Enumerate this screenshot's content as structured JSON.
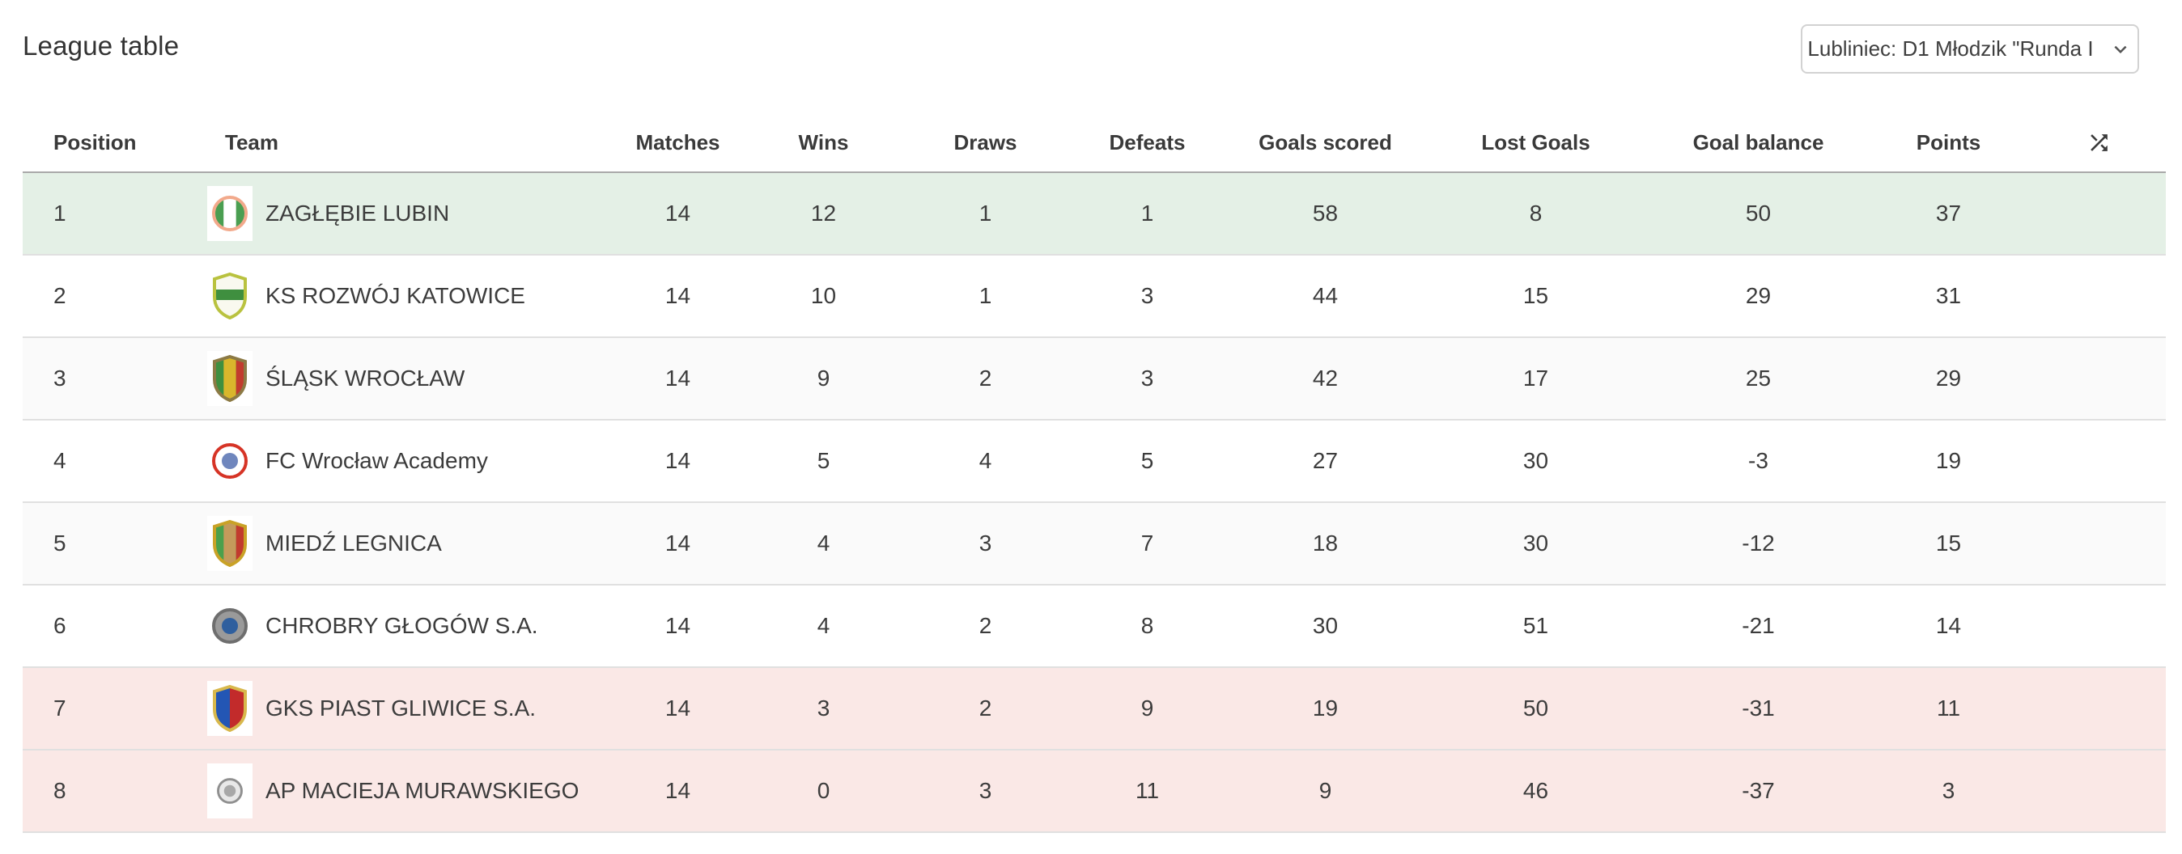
{
  "page": {
    "title": "League table"
  },
  "filter": {
    "value": "Lubliniec: D1 Młodzik \"Runda I",
    "chevron_icon": "chevron-down"
  },
  "colors": {
    "promotion_bg": "#e4f0e6",
    "relegation_bg": "#fae8e6",
    "stripe_bg": "#fafafa",
    "row_bg": "#ffffff",
    "divider": "#e0e0e0",
    "header_rule": "#a9a9a9",
    "icon": "#3a3a3a"
  },
  "table": {
    "columns": [
      "Position",
      "Team",
      "Matches",
      "Wins",
      "Draws",
      "Defeats",
      "Goals scored",
      "Lost Goals",
      "Goal balance",
      "Points"
    ],
    "sort_icon": "shuffle-icon",
    "rows": [
      {
        "position": "1",
        "team": "ZAGŁĘBIE LUBIN",
        "matches": "14",
        "wins": "12",
        "draws": "1",
        "defeats": "1",
        "goals_scored": "58",
        "lost_goals": "8",
        "goal_balance": "50",
        "points": "37",
        "zone": "promotion",
        "crest": {
          "shape": "circle",
          "border": "#f2a98b",
          "bg": "#ffffff",
          "stripes": [
            "#4a9e51",
            "#ffffff",
            "#4a9e51"
          ],
          "dir": "v"
        }
      },
      {
        "position": "2",
        "team": "KS ROZWÓJ KATOWICE",
        "matches": "14",
        "wins": "10",
        "draws": "1",
        "defeats": "3",
        "goals_scored": "44",
        "lost_goals": "15",
        "goal_balance": "29",
        "points": "31",
        "zone": "none",
        "crest": {
          "shape": "shield",
          "border": "#b9c23f",
          "bg": "#f9f9ef",
          "stripes": [
            "#3f8f3f"
          ],
          "dir": "h"
        }
      },
      {
        "position": "3",
        "team": "ŚLĄSK WROCŁAW",
        "matches": "14",
        "wins": "9",
        "draws": "2",
        "defeats": "3",
        "goals_scored": "42",
        "lost_goals": "17",
        "goal_balance": "25",
        "points": "29",
        "zone": "none",
        "crest": {
          "shape": "shield",
          "border": "#8c7a45",
          "bg": "#3f8f3f",
          "stripes": [
            "#3f8f3f",
            "#d9b62c",
            "#c23b2e"
          ],
          "dir": "v"
        }
      },
      {
        "position": "4",
        "team": "FC Wrocław Academy",
        "matches": "14",
        "wins": "5",
        "draws": "4",
        "defeats": "5",
        "goals_scored": "27",
        "lost_goals": "30",
        "goal_balance": "-3",
        "points": "19",
        "zone": "none",
        "crest": {
          "shape": "circle",
          "border": "#d63426",
          "bg": "#ffffff",
          "stripes": [
            "#6f86bd"
          ],
          "dir": "c"
        }
      },
      {
        "position": "5",
        "team": "MIEDŹ LEGNICA",
        "matches": "14",
        "wins": "4",
        "draws": "3",
        "defeats": "7",
        "goals_scored": "18",
        "lost_goals": "30",
        "goal_balance": "-12",
        "points": "15",
        "zone": "none",
        "crest": {
          "shape": "shield",
          "border": "#c9a227",
          "bg": "#4aa04c",
          "stripes": [
            "#4aa04c",
            "#c49a5b",
            "#c23b2e"
          ],
          "dir": "v"
        }
      },
      {
        "position": "6",
        "team": "CHROBRY GŁOGÓW S.A.",
        "matches": "14",
        "wins": "4",
        "draws": "2",
        "defeats": "8",
        "goals_scored": "30",
        "lost_goals": "51",
        "goal_balance": "-21",
        "points": "14",
        "zone": "none",
        "crest": {
          "shape": "circle",
          "border": "#6e6e6e",
          "bg": "#9a9a9a",
          "stripes": [
            "#2f5f9e"
          ],
          "dir": "c"
        }
      },
      {
        "position": "7",
        "team": "GKS PIAST GLIWICE S.A.",
        "matches": "14",
        "wins": "3",
        "draws": "2",
        "defeats": "9",
        "goals_scored": "19",
        "lost_goals": "50",
        "goal_balance": "-31",
        "points": "11",
        "zone": "relegation",
        "crest": {
          "shape": "shield",
          "border": "#d8b84c",
          "bg": "#ffffff",
          "stripes": [
            "#2356b4",
            "#c22b2b"
          ],
          "dir": "v"
        }
      },
      {
        "position": "8",
        "team": "AP MACIEJA MURAWSKIEGO",
        "matches": "14",
        "wins": "0",
        "draws": "3",
        "defeats": "11",
        "goals_scored": "9",
        "lost_goals": "46",
        "goal_balance": "-37",
        "points": "3",
        "zone": "relegation",
        "crest": {
          "shape": "circle",
          "border": "#8f8f8f",
          "bg": "#e8e8e8",
          "stripes": [
            "#a8a8a8"
          ],
          "dir": "c",
          "small": true
        }
      }
    ]
  }
}
